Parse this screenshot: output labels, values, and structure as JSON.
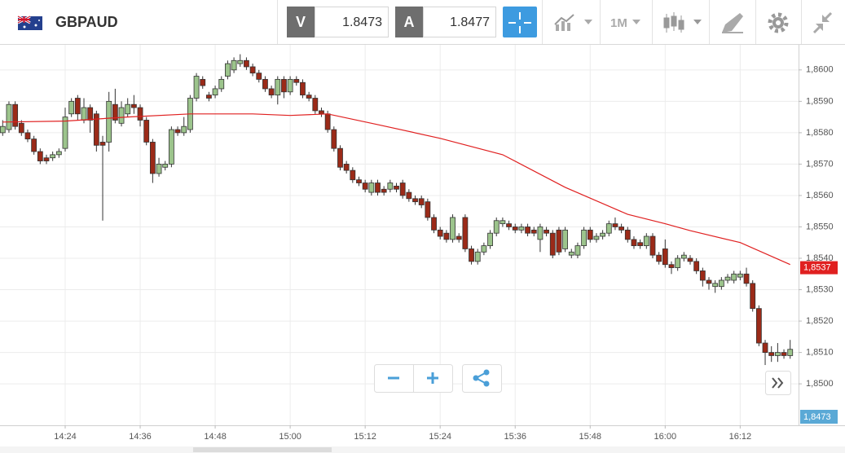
{
  "header": {
    "symbol": "GBPAUD",
    "sell_label": "V",
    "sell_price": "1.8473",
    "buy_label": "A",
    "buy_price": "1.8477",
    "timeframe": "1M"
  },
  "chart_data": {
    "type": "candlestick",
    "categories": [
      null,
      null,
      null,
      null,
      null,
      null,
      null,
      null,
      null,
      null,
      "14:24",
      null,
      null,
      null,
      null,
      null,
      null,
      null,
      null,
      null,
      null,
      null,
      "14:36",
      null,
      null,
      null,
      null,
      null,
      null,
      null,
      null,
      null,
      null,
      null,
      "14:48",
      null,
      null,
      null,
      null,
      null,
      null,
      null,
      null,
      null,
      null,
      null,
      "15:00",
      null,
      null,
      null,
      null,
      null,
      null,
      null,
      null,
      null,
      null,
      null,
      "15:12",
      null,
      null,
      null,
      null,
      null,
      null,
      null,
      null,
      null,
      null,
      null,
      "15:24",
      null,
      null,
      null,
      null,
      null,
      null,
      null,
      null,
      null,
      null,
      null,
      "15:36",
      null,
      null,
      null,
      null,
      null,
      null,
      null,
      null,
      null,
      null,
      null,
      "15:48",
      null,
      null,
      null,
      null,
      null,
      null,
      null,
      null,
      null,
      null,
      null,
      "16:00",
      null,
      null,
      null,
      null,
      null,
      null,
      null,
      null,
      null,
      null,
      null,
      "16:12",
      null,
      null,
      null,
      null,
      null,
      null,
      null,
      null
    ],
    "open": [
      1.858,
      1.8581,
      1.8589,
      1.8583,
      1.858,
      1.8578,
      1.8574,
      1.8572,
      1.8572,
      1.8573,
      1.8575,
      1.8586,
      1.8591,
      1.8584,
      1.8588,
      1.8586,
      1.8577,
      1.8577,
      1.8589,
      1.8583,
      1.8586,
      1.8589,
      1.8588,
      1.8584,
      1.8577,
      1.8567,
      1.8569,
      1.857,
      1.8581,
      1.858,
      1.8581,
      1.8591,
      1.8597,
      1.8592,
      1.8592,
      1.8594,
      1.8598,
      1.86,
      1.8602,
      1.8603,
      1.8601,
      1.8599,
      1.8597,
      1.8594,
      1.8592,
      1.8597,
      1.8593,
      1.8597,
      1.8596,
      1.8592,
      1.8591,
      1.8587,
      1.8586,
      1.8581,
      1.8575,
      1.857,
      1.8568,
      1.8565,
      1.8564,
      1.8561,
      1.8564,
      1.8562,
      1.8562,
      1.8563,
      1.8564,
      1.8561,
      1.8559,
      1.8559,
      1.8558,
      1.8553,
      1.8549,
      1.8548,
      1.8546,
      1.8547,
      1.8553,
      1.8543,
      1.8539,
      1.8542,
      1.8544,
      1.8548,
      1.8551,
      1.8551,
      1.855,
      1.8549,
      1.855,
      1.8549,
      1.8546,
      1.8549,
      1.8548,
      1.8549,
      1.8543,
      1.8541,
      1.8541,
      1.8544,
      1.8549,
      1.8546,
      1.8547,
      1.8548,
      1.8551,
      1.855,
      1.8549,
      1.8546,
      1.8545,
      1.8544,
      1.8547,
      1.8541,
      1.8543,
      1.8538,
      1.8537,
      1.854,
      1.854,
      1.8539,
      1.8536,
      1.8533,
      1.8531,
      1.8531,
      1.8533,
      1.8533,
      1.8534,
      1.8535,
      1.8532,
      1.8524,
      1.8513,
      1.851,
      1.8509,
      1.851,
      1.8509
    ],
    "high": [
      1.8584,
      1.859,
      1.859,
      1.8584,
      1.8581,
      1.8579,
      1.8575,
      1.8573,
      1.8574,
      1.8575,
      1.8588,
      1.8591,
      1.8592,
      1.8591,
      1.8589,
      1.8587,
      1.8579,
      1.8593,
      1.8594,
      1.859,
      1.8591,
      1.8592,
      1.8589,
      1.8585,
      1.8578,
      1.8572,
      1.8571,
      1.8582,
      1.8582,
      1.8585,
      1.8592,
      1.8599,
      1.8598,
      1.8593,
      1.8595,
      1.8598,
      1.8603,
      1.8604,
      1.8605,
      1.8604,
      1.8602,
      1.86,
      1.8598,
      1.8595,
      1.8598,
      1.8598,
      1.8598,
      1.8598,
      1.8597,
      1.8593,
      1.8592,
      1.8588,
      1.8587,
      1.8582,
      1.8576,
      1.8571,
      1.8569,
      1.8566,
      1.8565,
      1.8565,
      1.8565,
      1.8563,
      1.8565,
      1.8564,
      1.8565,
      1.8562,
      1.856,
      1.856,
      1.8559,
      1.8554,
      1.855,
      1.8549,
      1.8554,
      1.8548,
      1.8554,
      1.8544,
      1.8543,
      1.8545,
      1.8549,
      1.8553,
      1.8553,
      1.8552,
      1.8551,
      1.8551,
      1.8551,
      1.855,
      1.8551,
      1.855,
      1.8549,
      1.855,
      1.855,
      1.8543,
      1.8545,
      1.855,
      1.855,
      1.8548,
      1.8549,
      1.8552,
      1.8553,
      1.8551,
      1.855,
      1.8547,
      1.8546,
      1.8548,
      1.8548,
      1.8542,
      1.8546,
      1.8539,
      1.8541,
      1.8542,
      1.8541,
      1.854,
      1.8537,
      1.8534,
      1.8533,
      1.8534,
      1.8535,
      1.8536,
      1.8536,
      1.8537,
      1.8533,
      1.8525,
      1.8514,
      1.8512,
      1.8513,
      1.8511,
      1.8514
    ],
    "low": [
      1.8579,
      1.858,
      1.8581,
      1.8579,
      1.8577,
      1.8573,
      1.857,
      1.857,
      1.8571,
      1.8572,
      1.8574,
      1.8585,
      1.8584,
      1.8583,
      1.858,
      1.8574,
      1.8552,
      1.8574,
      1.8583,
      1.8582,
      1.8585,
      1.8586,
      1.8582,
      1.8576,
      1.8564,
      1.8566,
      1.8568,
      1.8569,
      1.8579,
      1.8579,
      1.858,
      1.859,
      1.8594,
      1.859,
      1.8591,
      1.8593,
      1.8597,
      1.8599,
      1.8601,
      1.86,
      1.8598,
      1.8596,
      1.8593,
      1.8591,
      1.8589,
      1.8591,
      1.8592,
      1.8595,
      1.8591,
      1.859,
      1.8586,
      1.8585,
      1.858,
      1.8574,
      1.8568,
      1.8567,
      1.8564,
      1.8563,
      1.8561,
      1.856,
      1.856,
      1.856,
      1.8561,
      1.8561,
      1.8559,
      1.8558,
      1.8557,
      1.8556,
      1.8552,
      1.8548,
      1.8546,
      1.8545,
      1.8545,
      1.8545,
      1.8542,
      1.8538,
      1.8538,
      1.8541,
      1.8543,
      1.8547,
      1.855,
      1.8549,
      1.8548,
      1.8548,
      1.8547,
      1.8547,
      1.8542,
      1.8547,
      1.854,
      1.8541,
      1.8542,
      1.854,
      1.854,
      1.8543,
      1.8545,
      1.8545,
      1.8546,
      1.8547,
      1.8549,
      1.8548,
      1.8545,
      1.8543,
      1.8543,
      1.8543,
      1.854,
      1.8538,
      1.8537,
      1.8535,
      1.8536,
      1.8539,
      1.8538,
      1.8535,
      1.8531,
      1.853,
      1.8529,
      1.853,
      1.8532,
      1.8532,
      1.8533,
      1.8531,
      1.8523,
      1.8512,
      1.8506,
      1.8507,
      1.8507,
      1.8508,
      1.8508
    ],
    "close": [
      1.8582,
      1.8589,
      1.8582,
      1.858,
      1.8578,
      1.8574,
      1.8571,
      1.8571,
      1.8573,
      1.8574,
      1.8585,
      1.859,
      1.8586,
      1.8588,
      1.8584,
      1.8576,
      1.8576,
      1.859,
      1.8584,
      1.8588,
      1.8589,
      1.8588,
      1.8584,
      1.8577,
      1.8567,
      1.857,
      1.857,
      1.8581,
      1.858,
      1.8582,
      1.8591,
      1.8598,
      1.8595,
      1.8591,
      1.8594,
      1.8597,
      1.8602,
      1.8603,
      1.8603,
      1.8601,
      1.8599,
      1.8597,
      1.8594,
      1.8592,
      1.8597,
      1.8593,
      1.8597,
      1.8596,
      1.8592,
      1.8591,
      1.8587,
      1.8586,
      1.8581,
      1.8575,
      1.8569,
      1.8568,
      1.8565,
      1.8564,
      1.8562,
      1.8564,
      1.8561,
      1.8561,
      1.8564,
      1.8562,
      1.856,
      1.8559,
      1.8558,
      1.8557,
      1.8553,
      1.8549,
      1.8547,
      1.8546,
      1.8553,
      1.8546,
      1.8543,
      1.8539,
      1.8542,
      1.8544,
      1.8548,
      1.8552,
      1.8552,
      1.855,
      1.8549,
      1.855,
      1.8548,
      1.8548,
      1.855,
      1.8548,
      1.8541,
      1.8542,
      1.8549,
      1.8542,
      1.8544,
      1.8549,
      1.8546,
      1.8547,
      1.8548,
      1.8551,
      1.855,
      1.8549,
      1.8546,
      1.8544,
      1.8544,
      1.8547,
      1.8541,
      1.8539,
      1.8538,
      1.8537,
      1.854,
      1.8541,
      1.8539,
      1.8536,
      1.8533,
      1.8532,
      1.8532,
      1.8533,
      1.8534,
      1.8535,
      1.8535,
      1.8532,
      1.8524,
      1.8513,
      1.851,
      1.8509,
      1.851,
      1.8509,
      1.8511
    ],
    "up_color": "#9cc48c",
    "down_color": "#9b2a18",
    "ma": {
      "x": [
        0,
        10,
        20,
        30,
        40,
        46,
        52,
        60,
        70,
        80,
        90,
        100,
        106,
        110,
        118,
        126
      ],
      "values": [
        1.85834,
        1.85837,
        1.8585,
        1.8586,
        1.8586,
        1.85855,
        1.8586,
        1.85826,
        1.85782,
        1.8573,
        1.85626,
        1.8554,
        1.8551,
        1.85488,
        1.8545,
        1.8538
      ],
      "color": "#e02020"
    },
    "ma_last": {
      "value": 1.8537,
      "label": "1,8537"
    },
    "price_label": "1,8473",
    "ylim": [
      1.84868,
      1.8608
    ],
    "yticks": [
      {
        "value": 1.85,
        "label": "1,8500"
      },
      {
        "value": 1.851,
        "label": "1,8510"
      },
      {
        "value": 1.852,
        "label": "1,8520"
      },
      {
        "value": 1.853,
        "label": "1,8530"
      },
      {
        "value": 1.854,
        "label": "1,8540"
      },
      {
        "value": 1.855,
        "label": "1,8550"
      },
      {
        "value": 1.856,
        "label": "1,8560"
      },
      {
        "value": 1.857,
        "label": "1,8570"
      },
      {
        "value": 1.858,
        "label": "1,8580"
      },
      {
        "value": 1.859,
        "label": "1,8590"
      },
      {
        "value": 1.86,
        "label": "1,8600"
      }
    ],
    "grid": true
  }
}
